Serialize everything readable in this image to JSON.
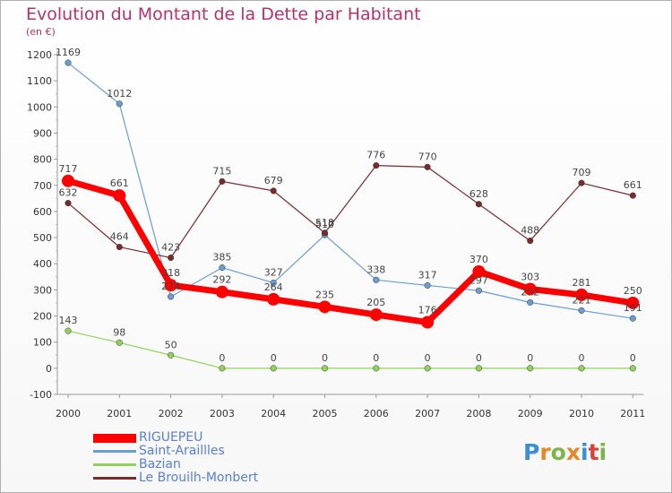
{
  "title": "Evolution du Montant de la Dette par Habitant",
  "subtitle": "(en €)",
  "brand": {
    "text": "Proxiti",
    "letters": [
      {
        "ch": "P",
        "color": "#3b8fd6"
      },
      {
        "ch": "r",
        "color": "#e8862a"
      },
      {
        "ch": "o",
        "color": "#7ab648"
      },
      {
        "ch": "x",
        "color": "#e8862a"
      },
      {
        "ch": "i",
        "color": "#3b8fd6"
      },
      {
        "ch": "t",
        "color": "#d9423b"
      },
      {
        "ch": "i",
        "color": "#7ab648"
      }
    ]
  },
  "chart_data": {
    "type": "line",
    "title": "Evolution du Montant de la Dette par Habitant",
    "ylabel": "(en €)",
    "xlabel": "",
    "x": [
      "2000",
      "2001",
      "2002",
      "2003",
      "2004",
      "2005",
      "2006",
      "2007",
      "2008",
      "2009",
      "2010",
      "2011"
    ],
    "ylim": [
      -100,
      1200
    ],
    "yticks": [
      -100,
      0,
      100,
      200,
      300,
      400,
      500,
      600,
      700,
      800,
      900,
      1000,
      1100,
      1200
    ],
    "grid": false,
    "legend_position": "bottom-left",
    "series": [
      {
        "name": "RIGUEPEU",
        "color": "#ff0000",
        "values": [
          717,
          661,
          318,
          292,
          264,
          235,
          205,
          176,
          370,
          303,
          281,
          250
        ]
      },
      {
        "name": "Saint-Araillles",
        "color": "#6b9dd0",
        "values": [
          1169,
          1012,
          274,
          385,
          327,
          510,
          338,
          317,
          297,
          252,
          221,
          191
        ]
      },
      {
        "name": "Bazian",
        "color": "#8fd35a",
        "values": [
          143,
          98,
          50,
          0,
          0,
          0,
          0,
          0,
          0,
          0,
          0,
          0
        ]
      },
      {
        "name": "Le Brouilh-Monbert",
        "color": "#7a2a2a",
        "values": [
          632,
          464,
          423,
          715,
          679,
          518,
          776,
          770,
          628,
          488,
          709,
          661
        ]
      }
    ]
  }
}
